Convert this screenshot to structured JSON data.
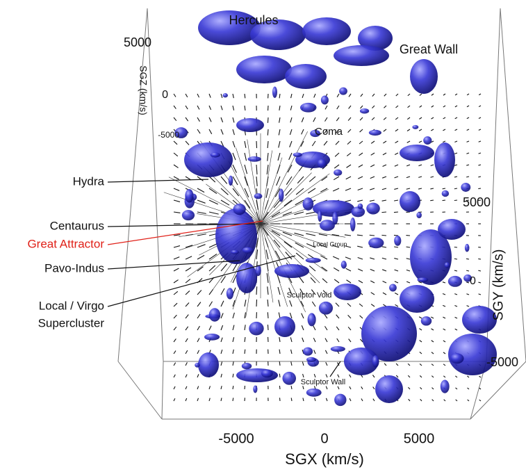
{
  "axes": {
    "x": {
      "title": "SGX (km/s)",
      "ticks": [
        "-5000",
        "0",
        "5000"
      ]
    },
    "y": {
      "title": "SGY (km/s)",
      "ticks": [
        "5000",
        "0",
        "-5000"
      ]
    },
    "z": {
      "title": "SGZ (km/s)",
      "ticks": [
        "5000",
        "0",
        "-5000"
      ]
    }
  },
  "structures": [
    {
      "label": "Hercules"
    },
    {
      "label": "Great Wall"
    },
    {
      "label": "Coma"
    },
    {
      "label": "Hydra"
    },
    {
      "label": "Centaurus"
    },
    {
      "label": "Great Attractor",
      "color": "#e02018"
    },
    {
      "label": "Pavo-Indus"
    },
    {
      "label": "Local / Virgo"
    },
    {
      "label": "Supercluster"
    },
    {
      "label": "Local Group"
    },
    {
      "label": "Sculptor Void"
    },
    {
      "label": "Sculptor Wall"
    }
  ]
}
